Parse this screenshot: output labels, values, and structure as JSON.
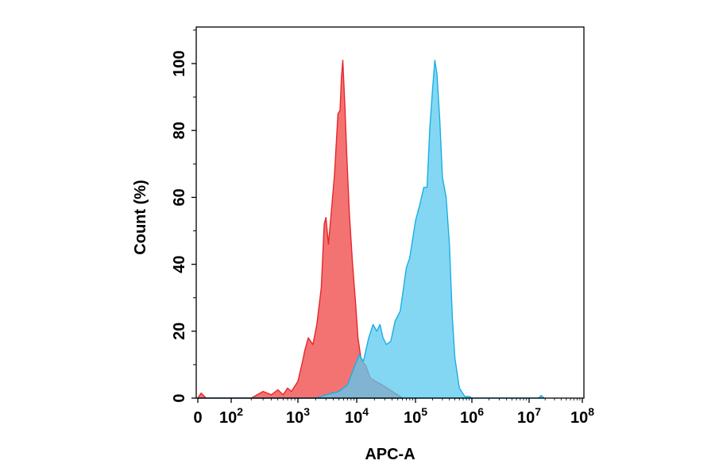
{
  "chart_data": {
    "type": "area",
    "xlabel": "APC-A",
    "ylabel": "Count  (%)",
    "x_scale": "biexponential (0, then log decades 10^2 to 10^8)",
    "xlim": [
      0,
      100000000
    ],
    "ylim": [
      0,
      110
    ],
    "grid": false,
    "x_ticks": [
      {
        "value": 0,
        "base": "0",
        "exp": ""
      },
      {
        "value": 100,
        "base": "10",
        "exp": "2"
      },
      {
        "value": 1000,
        "base": "10",
        "exp": "3"
      },
      {
        "value": 10000,
        "base": "10",
        "exp": "4"
      },
      {
        "value": 100000,
        "base": "10",
        "exp": "5"
      },
      {
        "value": 1000000,
        "base": "10",
        "exp": "6"
      },
      {
        "value": 10000000,
        "base": "10",
        "exp": "7"
      },
      {
        "value": 100000000,
        "base": "10",
        "exp": "8"
      }
    ],
    "y_ticks": [
      0,
      20,
      40,
      60,
      80,
      100
    ],
    "series": [
      {
        "color": "#f15a5a",
        "stroke": "#e8262a",
        "points": [
          [
            0,
            0
          ],
          [
            10,
            1.5
          ],
          [
            25,
            0
          ],
          [
            200,
            0
          ],
          [
            300,
            2
          ],
          [
            400,
            1
          ],
          [
            500,
            2.5
          ],
          [
            600,
            1
          ],
          [
            700,
            3
          ],
          [
            800,
            2
          ],
          [
            1000,
            5
          ],
          [
            1200,
            11
          ],
          [
            1300,
            14
          ],
          [
            1500,
            18
          ],
          [
            1800,
            16
          ],
          [
            2100,
            22
          ],
          [
            2500,
            33
          ],
          [
            2800,
            52
          ],
          [
            3000,
            54
          ],
          [
            3300,
            46
          ],
          [
            3800,
            58
          ],
          [
            4200,
            67
          ],
          [
            4800,
            85
          ],
          [
            5200,
            86
          ],
          [
            5500,
            96
          ],
          [
            5800,
            101
          ],
          [
            6300,
            87
          ],
          [
            6800,
            72
          ],
          [
            7500,
            55
          ],
          [
            8500,
            40
          ],
          [
            9500,
            29
          ],
          [
            10500,
            18
          ],
          [
            12000,
            11
          ],
          [
            14000,
            10
          ],
          [
            17000,
            6
          ],
          [
            21000,
            5
          ],
          [
            27000,
            4
          ],
          [
            33000,
            3
          ],
          [
            40000,
            2
          ],
          [
            50000,
            1
          ],
          [
            60000,
            0
          ]
        ]
      },
      {
        "color": "#5bc9ef",
        "stroke": "#1aaee5",
        "points": [
          [
            0,
            0
          ],
          [
            2000,
            0
          ],
          [
            3000,
            1
          ],
          [
            5000,
            2
          ],
          [
            7000,
            4
          ],
          [
            9000,
            9
          ],
          [
            11000,
            13
          ],
          [
            13000,
            11
          ],
          [
            16000,
            18
          ],
          [
            19000,
            22
          ],
          [
            22000,
            20
          ],
          [
            25000,
            22
          ],
          [
            28000,
            18
          ],
          [
            32000,
            16
          ],
          [
            38000,
            17
          ],
          [
            45000,
            23
          ],
          [
            55000,
            26
          ],
          [
            70000,
            39
          ],
          [
            80000,
            42
          ],
          [
            100000,
            53
          ],
          [
            120000,
            58
          ],
          [
            140000,
            63
          ],
          [
            160000,
            63
          ],
          [
            180000,
            81
          ],
          [
            200000,
            92
          ],
          [
            220000,
            101
          ],
          [
            240000,
            97
          ],
          [
            270000,
            83
          ],
          [
            300000,
            66
          ],
          [
            350000,
            60
          ],
          [
            400000,
            46
          ],
          [
            450000,
            24
          ],
          [
            500000,
            12
          ],
          [
            600000,
            3
          ],
          [
            750000,
            0.5
          ],
          [
            900000,
            0.5
          ],
          [
            1000000,
            0
          ],
          [
            15000000,
            0
          ],
          [
            17000000,
            0.8
          ],
          [
            19000000,
            0
          ]
        ]
      }
    ]
  }
}
